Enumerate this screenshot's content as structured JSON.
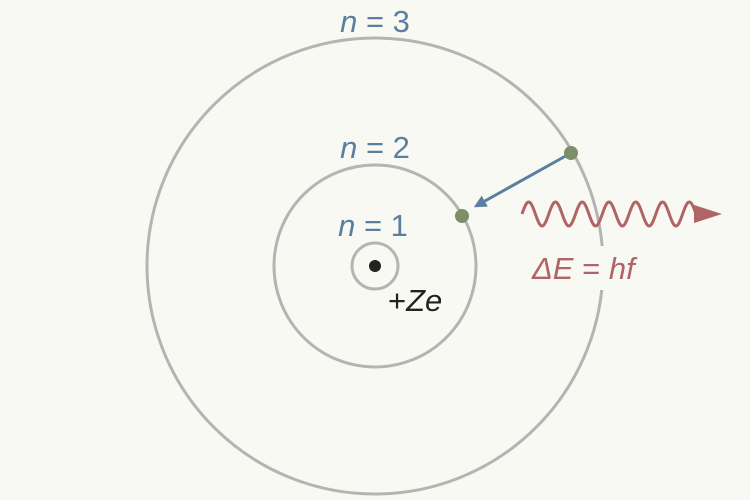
{
  "labels": {
    "orbit1": {
      "var": "n",
      "rest": " = 1"
    },
    "orbit2": {
      "var": "n",
      "rest": " = 2"
    },
    "orbit3": {
      "var": "n",
      "rest": " = 3"
    },
    "nucleus": {
      "sign": "+",
      "var": "Ze"
    },
    "photon": {
      "var1": "ΔE",
      "eq": " = ",
      "var2": "hf"
    }
  },
  "colors": {
    "background": "#f9f9f4",
    "orbit": "#b4b4b4",
    "label_blue": "#5a7fa0",
    "transition_arrow": "#5a7fa0",
    "electron": "#7d8f6a",
    "photon": "#b06464",
    "nucleus": "#222222"
  }
}
